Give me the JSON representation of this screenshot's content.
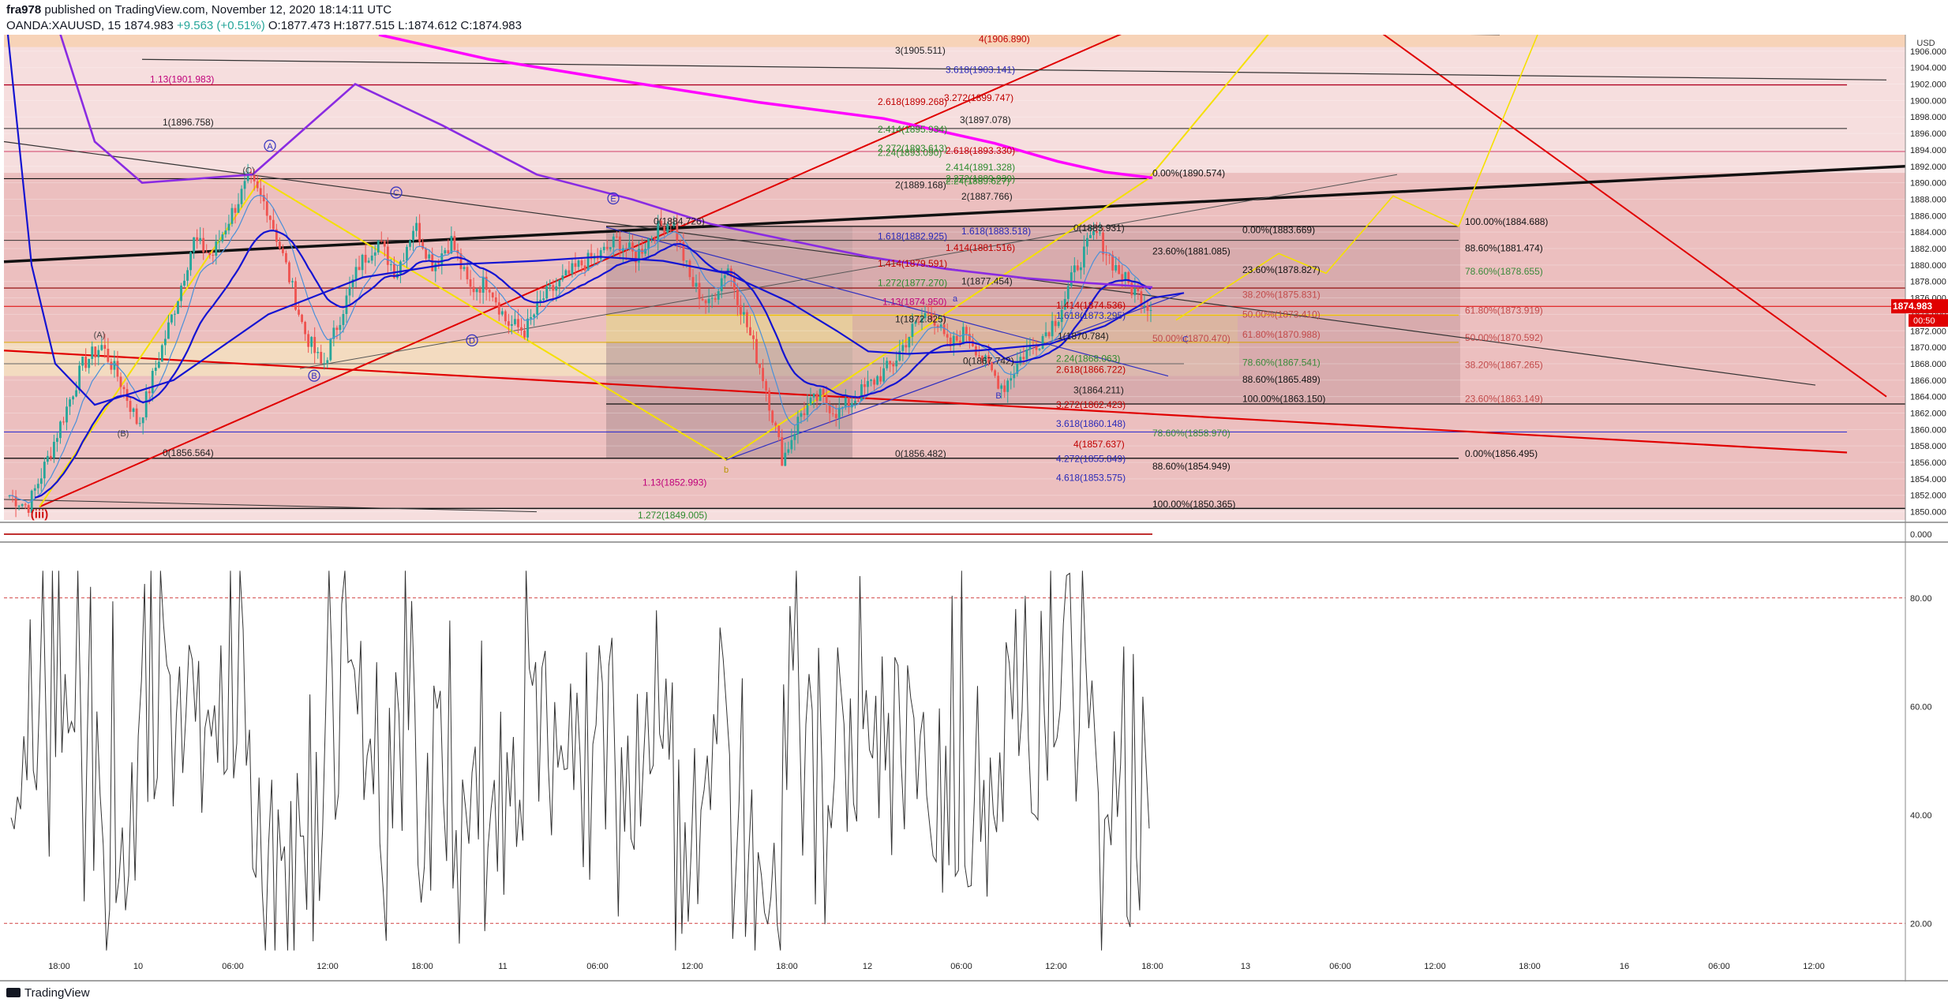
{
  "header": {
    "author": "fra978",
    "published": "published on TradingView.com, November 12, 2020 18:14:11 UTC",
    "symbol": "OANDA:XAUUSD, 15",
    "last": "1874.983",
    "change": "+9.563 (+0.51%)",
    "ohlc": "O:1877.473 H:1877.515 L:1874.612 C:1874.983"
  },
  "footer": {
    "brand": "TradingView"
  },
  "colors": {
    "bull": "#26a69a",
    "bear": "#ef5350",
    "fib_red": "#e60000",
    "magenta": "#ff00ff",
    "violet": "#8a2be2",
    "blue_ma": "#1414d2",
    "yellow": "#f5e000",
    "red_line": "#e00000"
  },
  "chart_data": {
    "type": "candlestick",
    "title": "",
    "currency": "USD",
    "y_range": [
      1849,
      1908
    ],
    "rsi_range": [
      10,
      90
    ],
    "last_price_label": "1874.983",
    "countdown_label": "00:50",
    "y_ticks": [
      "1906.000",
      "1904.000",
      "1902.000",
      "1900.000",
      "1898.000",
      "1896.000",
      "1894.000",
      "1892.000",
      "1890.000",
      "1888.000",
      "1886.000",
      "1884.000",
      "1882.000",
      "1880.000",
      "1878.000",
      "1876.000",
      "1874.000",
      "1872.000",
      "1870.000",
      "1868.000",
      "1866.000",
      "1864.000",
      "1862.000",
      "1860.000",
      "1858.000",
      "1856.000",
      "1854.000",
      "1852.000",
      "1850.000"
    ],
    "rsi_ticks": [
      "80.00",
      "60.00",
      "40.00",
      "20.00"
    ],
    "macd_tick": "0.000",
    "x_ticks": [
      "18:00",
      "10",
      "06:00",
      "12:00",
      "18:00",
      "11",
      "06:00",
      "12:00",
      "18:00",
      "12",
      "06:00",
      "12:00",
      "18:00",
      "13",
      "06:00",
      "12:00",
      "18:00",
      "16",
      "06:00",
      "12:00"
    ],
    "last_price": 1874.983,
    "wave_points": [
      {
        "label": "(iii)",
        "price": 1850.6
      },
      {
        "label": "(A)",
        "price": 1870.2
      },
      {
        "label": "(B)",
        "price": 1860.5
      },
      {
        "label": "(C)",
        "price": 1890.4
      },
      {
        "label": "A",
        "price": 1892.0
      },
      {
        "label": "B",
        "price": 1867.5
      },
      {
        "label": "C",
        "price": 1886.7
      },
      {
        "label": "D",
        "price": 1871.8
      },
      {
        "label": "E",
        "price": 1885.6
      },
      {
        "label": "b",
        "price": 1856.3
      },
      {
        "label": "a",
        "price": 1874.6
      },
      {
        "label": "B",
        "price": 1865.1
      },
      {
        "label": "C",
        "price": 1872.0
      }
    ],
    "fib_labels": [
      {
        "text": "4(1906.890)",
        "price": 1906.9
      },
      {
        "text": "3(1905.511)",
        "price": 1905.511
      },
      {
        "text": "3.618(1903.141)",
        "price": 1903.141
      },
      {
        "text": "1.13(1901.983)",
        "price": 1901.983
      },
      {
        "text": "2.618(1899.268)",
        "price": 1899.268
      },
      {
        "text": "3.272(1899.747)",
        "price": 1899.747
      },
      {
        "text": "3(1897.078)",
        "price": 1897.078
      },
      {
        "text": "1(1896.758)",
        "price": 1896.758
      },
      {
        "text": "2.414(1895.934)",
        "price": 1895.934
      },
      {
        "text": "2.272(1893.613)",
        "price": 1893.613
      },
      {
        "text": "2.24(1893.090)",
        "price": 1893.09
      },
      {
        "text": "2.618(1893.330)",
        "price": 1893.33
      },
      {
        "text": "2.414(1891.328)",
        "price": 1891.328
      },
      {
        "text": "0.00%(1890.574)",
        "price": 1890.574
      },
      {
        "text": "2.272(1889.939)",
        "price": 1889.939
      },
      {
        "text": "2.24(1889.627)",
        "price": 1889.627
      },
      {
        "text": "2(1889.168)",
        "price": 1889.168
      },
      {
        "text": "2(1887.766)",
        "price": 1887.766
      },
      {
        "text": "100.00%(1884.688)",
        "price": 1884.688
      },
      {
        "text": "0(1884.726)",
        "price": 1884.726
      },
      {
        "text": "0(1883.931)",
        "price": 1883.931
      },
      {
        "text": "0.00%(1883.669)",
        "price": 1883.669
      },
      {
        "text": "1.618(1883.518)",
        "price": 1883.518
      },
      {
        "text": "1.618(1882.925)",
        "price": 1882.925
      },
      {
        "text": "1.414(1881.516)",
        "price": 1881.516
      },
      {
        "text": "88.60%(1881.474)",
        "price": 1881.474
      },
      {
        "text": "23.60%(1881.085)",
        "price": 1881.085
      },
      {
        "text": "1.414(1879.591)",
        "price": 1879.591
      },
      {
        "text": "23.60%(1878.827)",
        "price": 1878.827
      },
      {
        "text": "78.60%(1878.655)",
        "price": 1878.655
      },
      {
        "text": "1(1877.454)",
        "price": 1877.454
      },
      {
        "text": "1.272(1877.270)",
        "price": 1877.27
      },
      {
        "text": "38.20%(1875.831)",
        "price": 1875.831
      },
      {
        "text": "1.13(1874.950)",
        "price": 1874.95
      },
      {
        "text": "1.414(1874.536)",
        "price": 1874.536
      },
      {
        "text": "61.80%(1873.919)",
        "price": 1873.919
      },
      {
        "text": "1.618(1873.295)",
        "price": 1873.295
      },
      {
        "text": "50.00%(1873.410)",
        "price": 1873.41
      },
      {
        "text": "1(1872.825)",
        "price": 1872.825
      },
      {
        "text": "61.80%(1870.988)",
        "price": 1870.988
      },
      {
        "text": "1(1870.784)",
        "price": 1870.784
      },
      {
        "text": "50.00%(1870.592)",
        "price": 1870.592
      },
      {
        "text": "50.00%(1870.470)",
        "price": 1870.47
      },
      {
        "text": "2.24(1868.063)",
        "price": 1868.063
      },
      {
        "text": "0(1867.742)",
        "price": 1867.742
      },
      {
        "text": "78.60%(1867.541)",
        "price": 1867.541
      },
      {
        "text": "38.20%(1867.265)",
        "price": 1867.265
      },
      {
        "text": "2.618(1866.722)",
        "price": 1866.722
      },
      {
        "text": "88.60%(1865.489)",
        "price": 1865.489
      },
      {
        "text": "3(1864.211)",
        "price": 1864.211
      },
      {
        "text": "100.00%(1863.150)",
        "price": 1863.15
      },
      {
        "text": "23.60%(1863.149)",
        "price": 1863.149
      },
      {
        "text": "3.272(1862.423)",
        "price": 1862.423
      },
      {
        "text": "3.618(1860.148)",
        "price": 1860.148
      },
      {
        "text": "78.60%(1858.970)",
        "price": 1858.97
      },
      {
        "text": "4(1857.637)",
        "price": 1857.637
      },
      {
        "text": "0(1856.564)",
        "price": 1856.564
      },
      {
        "text": "0(1856.482)",
        "price": 1856.482
      },
      {
        "text": "0.00%(1856.495)",
        "price": 1856.495
      },
      {
        "text": "4.272(1855.849)",
        "price": 1855.849
      },
      {
        "text": "88.60%(1854.949)",
        "price": 1854.949
      },
      {
        "text": "4.618(1853.575)",
        "price": 1853.575
      },
      {
        "text": "1.13(1852.993)",
        "price": 1852.993
      },
      {
        "text": "100.00%(1850.365)",
        "price": 1850.365
      },
      {
        "text": "1.272(1849.005)",
        "price": 1849.005
      }
    ],
    "price_path": [
      1852,
      1850.6,
      1856,
      1862,
      1868,
      1870.2,
      1866,
      1860.5,
      1868,
      1875,
      1883,
      1881,
      1886,
      1890.4,
      1887,
      1880,
      1872,
      1867.5,
      1874,
      1880,
      1883,
      1879,
      1885,
      1880,
      1883,
      1877,
      1878,
      1873,
      1872,
      1876,
      1878,
      1880,
      1881,
      1883,
      1881,
      1884,
      1885.6,
      1878,
      1875,
      1880,
      1873,
      1866,
      1856.3,
      1862,
      1864,
      1862,
      1864,
      1866,
      1868,
      1872,
      1874.6,
      1870,
      1872,
      1868,
      1865.1,
      1869,
      1871,
      1874,
      1880,
      1884,
      1880,
      1877,
      1874.9
    ]
  }
}
